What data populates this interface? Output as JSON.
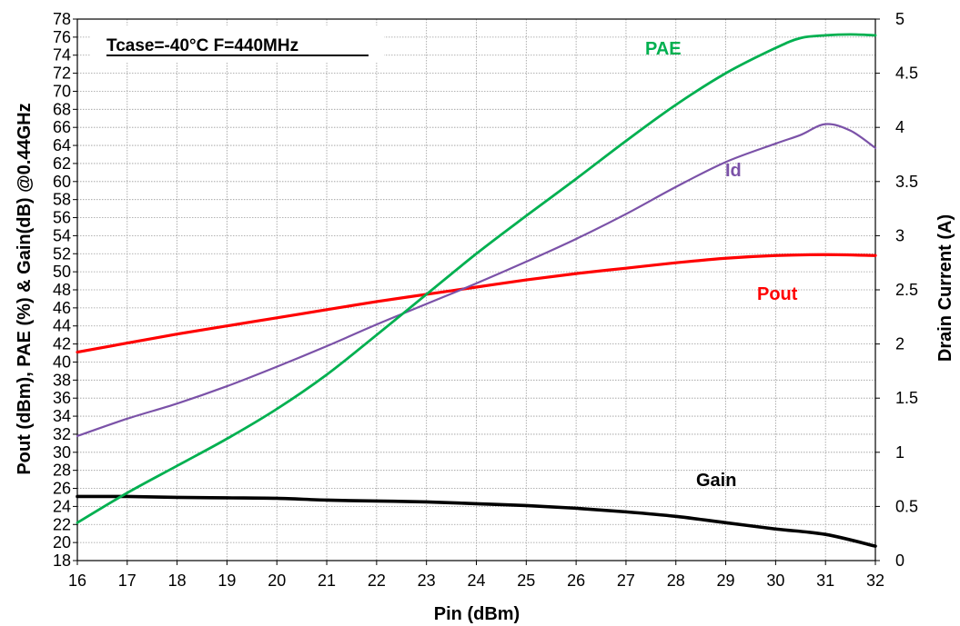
{
  "chart_data": {
    "type": "line",
    "title": "Tcase=-40°C F=440MHz",
    "xlabel": "Pin (dBm)",
    "ylabel_left": "Pout (dBm), PAE (%) & Gain(dB) @0.44GHz",
    "ylabel_right": "Drain Current (A)",
    "xlim": [
      16,
      32
    ],
    "ylim_left": [
      18,
      78
    ],
    "ylim_right": [
      0,
      5
    ],
    "x_ticks": [
      "16",
      "17",
      "18",
      "19",
      "20",
      "21",
      "22",
      "23",
      "24",
      "25",
      "26",
      "27",
      "28",
      "29",
      "30",
      "31",
      "32"
    ],
    "y_left_ticks": [
      "18",
      "20",
      "22",
      "24",
      "26",
      "28",
      "30",
      "32",
      "34",
      "36",
      "38",
      "40",
      "42",
      "44",
      "46",
      "48",
      "50",
      "52",
      "54",
      "56",
      "58",
      "60",
      "62",
      "64",
      "66",
      "68",
      "70",
      "72",
      "74",
      "76",
      "78"
    ],
    "y_right_ticks": [
      "0",
      "0.5",
      "1",
      "1.5",
      "2",
      "2.5",
      "3",
      "3.5",
      "4",
      "4.5",
      "5"
    ],
    "grid": true,
    "series": [
      {
        "name": "PAE",
        "axis": "left",
        "color": "#00b050",
        "x": [
          16,
          17,
          18,
          19,
          20,
          21,
          22,
          23,
          24,
          25,
          26,
          27,
          28,
          29,
          30,
          30.5,
          31,
          31.5,
          32
        ],
        "y": [
          22.2,
          25.5,
          28.5,
          31.5,
          34.8,
          38.6,
          43,
          47.5,
          52,
          56.2,
          60.3,
          64.5,
          68.5,
          72,
          74.8,
          75.9,
          76.2,
          76.3,
          76.2
        ]
      },
      {
        "name": "Id",
        "axis": "right",
        "color": "#7b52a8",
        "x": [
          16,
          17,
          18,
          19,
          20,
          21,
          22,
          23,
          24,
          25,
          26,
          27,
          28,
          29,
          30,
          30.5,
          31,
          31.5,
          32
        ],
        "y": [
          1.15,
          1.31,
          1.45,
          1.61,
          1.79,
          1.98,
          2.18,
          2.37,
          2.56,
          2.76,
          2.97,
          3.2,
          3.45,
          3.68,
          3.85,
          3.93,
          4.03,
          3.97,
          3.81
        ]
      },
      {
        "name": "Pout",
        "axis": "left",
        "color": "#ff0000",
        "x": [
          16,
          17,
          18,
          19,
          20,
          21,
          22,
          23,
          24,
          25,
          26,
          27,
          28,
          29,
          30,
          31,
          32
        ],
        "y": [
          41.1,
          42.1,
          43.1,
          44,
          44.9,
          45.8,
          46.7,
          47.5,
          48.3,
          49.1,
          49.8,
          50.4,
          51,
          51.5,
          51.8,
          51.9,
          51.8
        ]
      },
      {
        "name": "Gain",
        "axis": "left",
        "color": "#000000",
        "x": [
          16,
          17,
          18,
          19,
          20,
          21,
          22,
          23,
          24,
          25,
          26,
          27,
          28,
          29,
          30,
          31,
          32
        ],
        "y": [
          25.1,
          25.1,
          25.0,
          24.95,
          24.9,
          24.7,
          24.6,
          24.5,
          24.3,
          24.1,
          23.8,
          23.4,
          22.9,
          22.2,
          21.5,
          20.9,
          19.6
        ]
      }
    ]
  }
}
